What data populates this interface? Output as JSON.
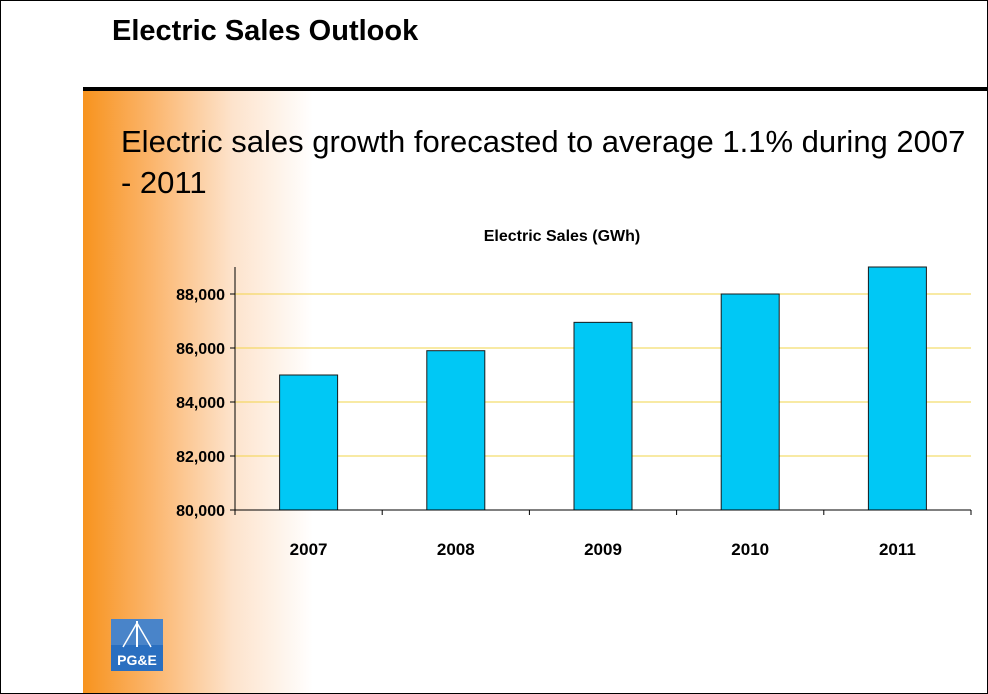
{
  "slide": {
    "title": "Electric Sales Outlook",
    "headline": "Electric sales growth forecasted to average 1.1% during 2007 - 2011",
    "logo_text": "PG&E"
  },
  "colors": {
    "bar_fill": "#00c8f5",
    "bar_stroke": "#1a1a1a",
    "gridline": "#f2d44a",
    "side_gradient": "#f7931e",
    "logo_blue": "#2a6fc0"
  },
  "chart_data": {
    "type": "bar",
    "title": "Electric Sales (GWh)",
    "categories": [
      "2007",
      "2008",
      "2009",
      "2010",
      "2011"
    ],
    "values": [
      85000,
      85900,
      86950,
      88000,
      89000
    ],
    "ylim": [
      80000,
      89000
    ],
    "yticks": [
      80000,
      82000,
      84000,
      86000,
      88000
    ],
    "ytick_labels": [
      "80,000",
      "82,000",
      "84,000",
      "86,000",
      "88,000"
    ],
    "xlabel": "",
    "ylabel": "",
    "grid": true,
    "legend": "none"
  }
}
